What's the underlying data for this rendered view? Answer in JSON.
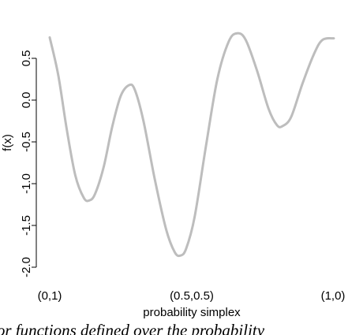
{
  "chart_data": {
    "type": "line",
    "title": "",
    "xlabel": "probability simplex",
    "ylabel": "f(x)",
    "x_ticks": [
      "(0,1)",
      "(0.5,0.5)",
      "(1,0)"
    ],
    "y_ticks": [
      "-2.0",
      "-1.5",
      "-1.0",
      "-0.5",
      "0.0",
      "0.5"
    ],
    "ylim": [
      -2.0,
      0.8
    ],
    "grid": false,
    "legend": "none",
    "series": [
      {
        "color": "#bdbdbd",
        "points": [
          {
            "x": 0.0,
            "y": 0.75
          },
          {
            "x": 0.03,
            "y": 0.3
          },
          {
            "x": 0.06,
            "y": -0.35
          },
          {
            "x": 0.09,
            "y": -0.9
          },
          {
            "x": 0.12,
            "y": -1.17
          },
          {
            "x": 0.14,
            "y": -1.2
          },
          {
            "x": 0.16,
            "y": -1.12
          },
          {
            "x": 0.19,
            "y": -0.8
          },
          {
            "x": 0.22,
            "y": -0.32
          },
          {
            "x": 0.25,
            "y": 0.05
          },
          {
            "x": 0.28,
            "y": 0.18
          },
          {
            "x": 0.3,
            "y": 0.12
          },
          {
            "x": 0.33,
            "y": -0.25
          },
          {
            "x": 0.37,
            "y": -0.95
          },
          {
            "x": 0.41,
            "y": -1.55
          },
          {
            "x": 0.44,
            "y": -1.82
          },
          {
            "x": 0.46,
            "y": -1.86
          },
          {
            "x": 0.48,
            "y": -1.78
          },
          {
            "x": 0.51,
            "y": -1.4
          },
          {
            "x": 0.55,
            "y": -0.55
          },
          {
            "x": 0.59,
            "y": 0.25
          },
          {
            "x": 0.63,
            "y": 0.7
          },
          {
            "x": 0.66,
            "y": 0.8
          },
          {
            "x": 0.69,
            "y": 0.72
          },
          {
            "x": 0.73,
            "y": 0.35
          },
          {
            "x": 0.77,
            "y": -0.1
          },
          {
            "x": 0.8,
            "y": -0.3
          },
          {
            "x": 0.82,
            "y": -0.31
          },
          {
            "x": 0.85,
            "y": -0.2
          },
          {
            "x": 0.89,
            "y": 0.2
          },
          {
            "x": 0.93,
            "y": 0.55
          },
          {
            "x": 0.96,
            "y": 0.72
          },
          {
            "x": 1.0,
            "y": 0.74
          }
        ]
      }
    ]
  },
  "caption": "for functions defined over the probability"
}
